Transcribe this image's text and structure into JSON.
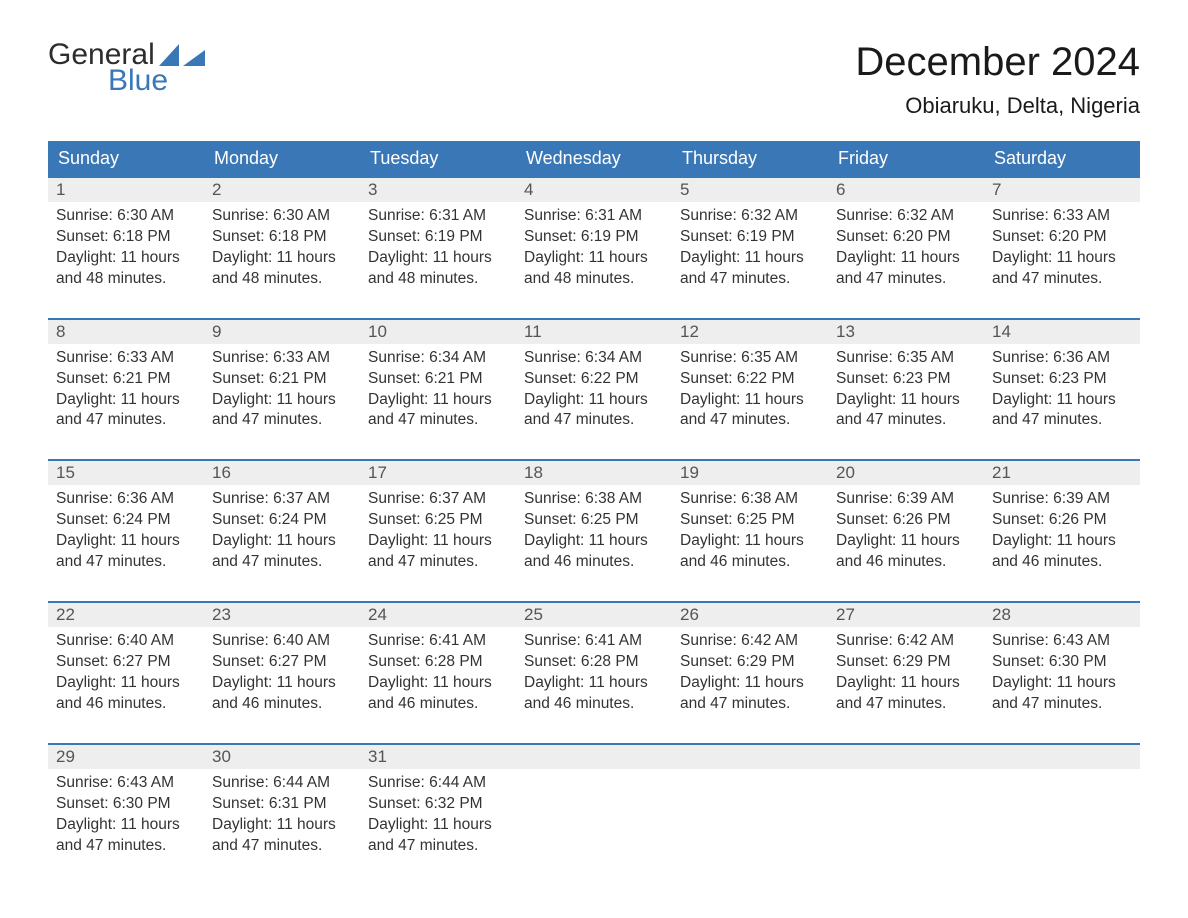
{
  "logo": {
    "word1": "General",
    "word2": "Blue",
    "accent_color": "#3a77b7"
  },
  "title": "December 2024",
  "location": "Obiaruku, Delta, Nigeria",
  "colors": {
    "header_bg": "#3a77b7",
    "header_text": "#ffffff",
    "daynum_bg": "#eeeeee",
    "daynum_text": "#555555",
    "body_text": "#333333",
    "week_border": "#3a77b7",
    "page_bg": "#ffffff"
  },
  "weekdays": [
    "Sunday",
    "Monday",
    "Tuesday",
    "Wednesday",
    "Thursday",
    "Friday",
    "Saturday"
  ],
  "weeks": [
    [
      {
        "n": "1",
        "sr": "Sunrise: 6:30 AM",
        "ss": "Sunset: 6:18 PM",
        "d1": "Daylight: 11 hours",
        "d2": "and 48 minutes."
      },
      {
        "n": "2",
        "sr": "Sunrise: 6:30 AM",
        "ss": "Sunset: 6:18 PM",
        "d1": "Daylight: 11 hours",
        "d2": "and 48 minutes."
      },
      {
        "n": "3",
        "sr": "Sunrise: 6:31 AM",
        "ss": "Sunset: 6:19 PM",
        "d1": "Daylight: 11 hours",
        "d2": "and 48 minutes."
      },
      {
        "n": "4",
        "sr": "Sunrise: 6:31 AM",
        "ss": "Sunset: 6:19 PM",
        "d1": "Daylight: 11 hours",
        "d2": "and 48 minutes."
      },
      {
        "n": "5",
        "sr": "Sunrise: 6:32 AM",
        "ss": "Sunset: 6:19 PM",
        "d1": "Daylight: 11 hours",
        "d2": "and 47 minutes."
      },
      {
        "n": "6",
        "sr": "Sunrise: 6:32 AM",
        "ss": "Sunset: 6:20 PM",
        "d1": "Daylight: 11 hours",
        "d2": "and 47 minutes."
      },
      {
        "n": "7",
        "sr": "Sunrise: 6:33 AM",
        "ss": "Sunset: 6:20 PM",
        "d1": "Daylight: 11 hours",
        "d2": "and 47 minutes."
      }
    ],
    [
      {
        "n": "8",
        "sr": "Sunrise: 6:33 AM",
        "ss": "Sunset: 6:21 PM",
        "d1": "Daylight: 11 hours",
        "d2": "and 47 minutes."
      },
      {
        "n": "9",
        "sr": "Sunrise: 6:33 AM",
        "ss": "Sunset: 6:21 PM",
        "d1": "Daylight: 11 hours",
        "d2": "and 47 minutes."
      },
      {
        "n": "10",
        "sr": "Sunrise: 6:34 AM",
        "ss": "Sunset: 6:21 PM",
        "d1": "Daylight: 11 hours",
        "d2": "and 47 minutes."
      },
      {
        "n": "11",
        "sr": "Sunrise: 6:34 AM",
        "ss": "Sunset: 6:22 PM",
        "d1": "Daylight: 11 hours",
        "d2": "and 47 minutes."
      },
      {
        "n": "12",
        "sr": "Sunrise: 6:35 AM",
        "ss": "Sunset: 6:22 PM",
        "d1": "Daylight: 11 hours",
        "d2": "and 47 minutes."
      },
      {
        "n": "13",
        "sr": "Sunrise: 6:35 AM",
        "ss": "Sunset: 6:23 PM",
        "d1": "Daylight: 11 hours",
        "d2": "and 47 minutes."
      },
      {
        "n": "14",
        "sr": "Sunrise: 6:36 AM",
        "ss": "Sunset: 6:23 PM",
        "d1": "Daylight: 11 hours",
        "d2": "and 47 minutes."
      }
    ],
    [
      {
        "n": "15",
        "sr": "Sunrise: 6:36 AM",
        "ss": "Sunset: 6:24 PM",
        "d1": "Daylight: 11 hours",
        "d2": "and 47 minutes."
      },
      {
        "n": "16",
        "sr": "Sunrise: 6:37 AM",
        "ss": "Sunset: 6:24 PM",
        "d1": "Daylight: 11 hours",
        "d2": "and 47 minutes."
      },
      {
        "n": "17",
        "sr": "Sunrise: 6:37 AM",
        "ss": "Sunset: 6:25 PM",
        "d1": "Daylight: 11 hours",
        "d2": "and 47 minutes."
      },
      {
        "n": "18",
        "sr": "Sunrise: 6:38 AM",
        "ss": "Sunset: 6:25 PM",
        "d1": "Daylight: 11 hours",
        "d2": "and 46 minutes."
      },
      {
        "n": "19",
        "sr": "Sunrise: 6:38 AM",
        "ss": "Sunset: 6:25 PM",
        "d1": "Daylight: 11 hours",
        "d2": "and 46 minutes."
      },
      {
        "n": "20",
        "sr": "Sunrise: 6:39 AM",
        "ss": "Sunset: 6:26 PM",
        "d1": "Daylight: 11 hours",
        "d2": "and 46 minutes."
      },
      {
        "n": "21",
        "sr": "Sunrise: 6:39 AM",
        "ss": "Sunset: 6:26 PM",
        "d1": "Daylight: 11 hours",
        "d2": "and 46 minutes."
      }
    ],
    [
      {
        "n": "22",
        "sr": "Sunrise: 6:40 AM",
        "ss": "Sunset: 6:27 PM",
        "d1": "Daylight: 11 hours",
        "d2": "and 46 minutes."
      },
      {
        "n": "23",
        "sr": "Sunrise: 6:40 AM",
        "ss": "Sunset: 6:27 PM",
        "d1": "Daylight: 11 hours",
        "d2": "and 46 minutes."
      },
      {
        "n": "24",
        "sr": "Sunrise: 6:41 AM",
        "ss": "Sunset: 6:28 PM",
        "d1": "Daylight: 11 hours",
        "d2": "and 46 minutes."
      },
      {
        "n": "25",
        "sr": "Sunrise: 6:41 AM",
        "ss": "Sunset: 6:28 PM",
        "d1": "Daylight: 11 hours",
        "d2": "and 46 minutes."
      },
      {
        "n": "26",
        "sr": "Sunrise: 6:42 AM",
        "ss": "Sunset: 6:29 PM",
        "d1": "Daylight: 11 hours",
        "d2": "and 47 minutes."
      },
      {
        "n": "27",
        "sr": "Sunrise: 6:42 AM",
        "ss": "Sunset: 6:29 PM",
        "d1": "Daylight: 11 hours",
        "d2": "and 47 minutes."
      },
      {
        "n": "28",
        "sr": "Sunrise: 6:43 AM",
        "ss": "Sunset: 6:30 PM",
        "d1": "Daylight: 11 hours",
        "d2": "and 47 minutes."
      }
    ],
    [
      {
        "n": "29",
        "sr": "Sunrise: 6:43 AM",
        "ss": "Sunset: 6:30 PM",
        "d1": "Daylight: 11 hours",
        "d2": "and 47 minutes."
      },
      {
        "n": "30",
        "sr": "Sunrise: 6:44 AM",
        "ss": "Sunset: 6:31 PM",
        "d1": "Daylight: 11 hours",
        "d2": "and 47 minutes."
      },
      {
        "n": "31",
        "sr": "Sunrise: 6:44 AM",
        "ss": "Sunset: 6:32 PM",
        "d1": "Daylight: 11 hours",
        "d2": "and 47 minutes."
      },
      null,
      null,
      null,
      null
    ]
  ]
}
